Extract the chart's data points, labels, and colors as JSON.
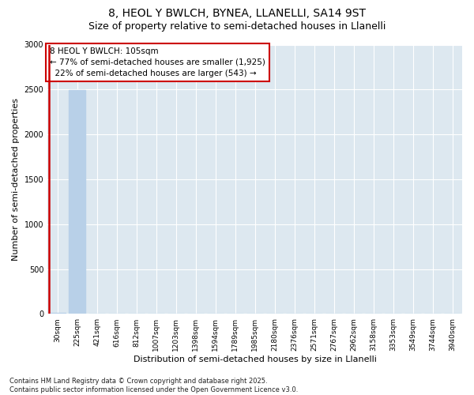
{
  "title1": "8, HEOL Y BWLCH, BYNEA, LLANELLI, SA14 9ST",
  "title2": "Size of property relative to semi-detached houses in Llanelli",
  "xlabel": "Distribution of semi-detached houses by size in Llanelli",
  "ylabel": "Number of semi-detached properties",
  "categories": [
    "30sqm",
    "225sqm",
    "421sqm",
    "616sqm",
    "812sqm",
    "1007sqm",
    "1203sqm",
    "1398sqm",
    "1594sqm",
    "1789sqm",
    "1985sqm",
    "2180sqm",
    "2376sqm",
    "2571sqm",
    "2767sqm",
    "2962sqm",
    "3158sqm",
    "3353sqm",
    "3549sqm",
    "3744sqm",
    "3940sqm"
  ],
  "values": [
    10,
    2490,
    3,
    1,
    0,
    0,
    0,
    0,
    0,
    0,
    0,
    0,
    0,
    0,
    0,
    0,
    0,
    0,
    0,
    0,
    0
  ],
  "bar_color": "#b8d0e8",
  "highlight_color": "#cc0000",
  "vline_index": 0,
  "annotation_text": "8 HEOL Y BWLCH: 105sqm\n← 77% of semi-detached houses are smaller (1,925)\n  22% of semi-detached houses are larger (543) →",
  "ylim": [
    0,
    3000
  ],
  "yticks": [
    0,
    500,
    1000,
    1500,
    2000,
    2500,
    3000
  ],
  "background_color": "#dde8f0",
  "footer": "Contains HM Land Registry data © Crown copyright and database right 2025.\nContains public sector information licensed under the Open Government Licence v3.0.",
  "title1_fontsize": 10,
  "title2_fontsize": 9,
  "axis_label_fontsize": 8,
  "tick_fontsize": 6.5,
  "annotation_fontsize": 7.5,
  "footer_fontsize": 6
}
